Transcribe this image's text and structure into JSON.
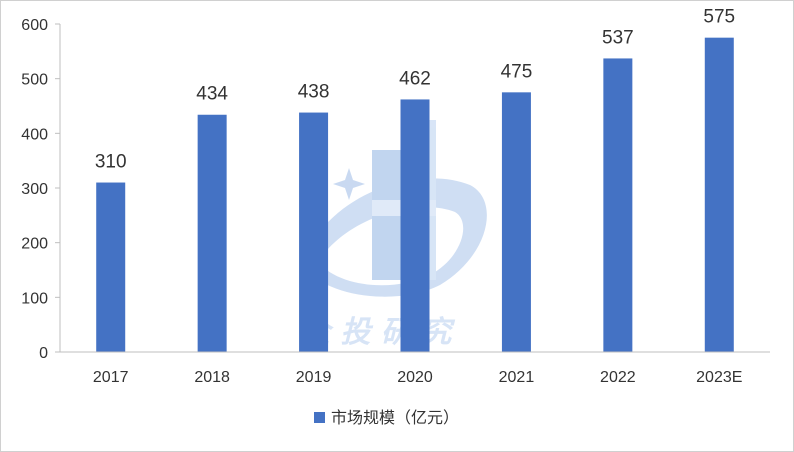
{
  "chart_data": {
    "type": "bar",
    "categories": [
      "2017",
      "2018",
      "2019",
      "2020",
      "2021",
      "2022",
      "2023E"
    ],
    "series": [
      {
        "name": "市场规模（亿元）",
        "values": [
          310,
          434,
          438,
          462,
          475,
          537,
          575
        ],
        "color": "#4472c4"
      }
    ],
    "yticks": [
      "0",
      "100",
      "200",
      "300",
      "400",
      "500",
      "600"
    ],
    "ylim": [
      0,
      600
    ],
    "grid": false,
    "legend": "bottom-center",
    "watermark_text": "企 投 研 究"
  },
  "colors": {
    "bar": "#4472c4",
    "axis": "#bfbfbf",
    "text": "#333333",
    "watermark": "#a9c4ea"
  }
}
